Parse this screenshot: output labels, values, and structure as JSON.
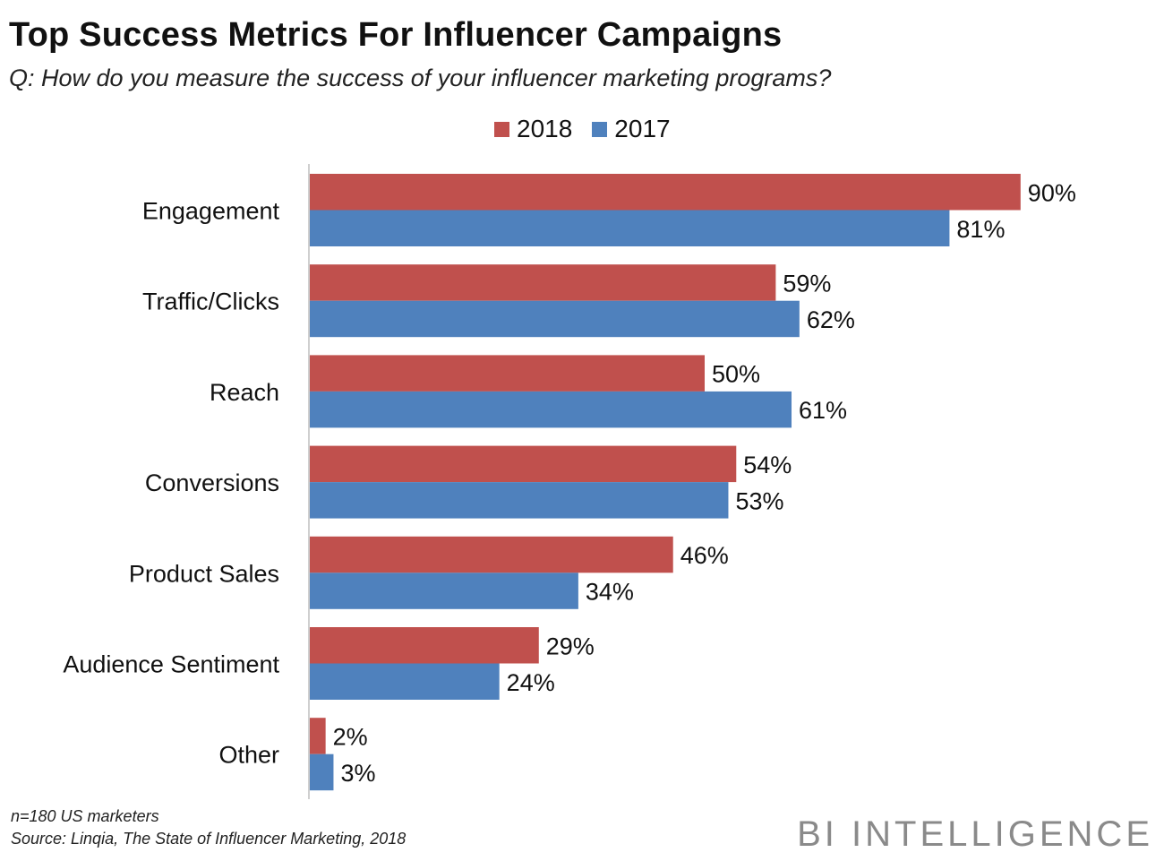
{
  "header": {
    "title": "Top Success Metrics For Influencer Campaigns",
    "subtitle": "Q: How do you measure the success of your influencer marketing programs?"
  },
  "footer": {
    "note": "n=180 US marketers",
    "source": "Source: Linqia, The State of Influencer Marketing, 2018",
    "brand": "BI INTELLIGENCE"
  },
  "chart_data": {
    "type": "bar",
    "orientation": "horizontal",
    "title": "Top Success Metrics For Influencer Campaigns",
    "subtitle": "Q: How do you measure the success of your influencer marketing programs?",
    "categories": [
      "Engagement",
      "Traffic/Clicks",
      "Reach",
      "Conversions",
      "Product Sales",
      "Audience Sentiment",
      "Other"
    ],
    "series": [
      {
        "name": "2018",
        "color": "#c0504d",
        "values": [
          90,
          59,
          50,
          54,
          46,
          29,
          2
        ],
        "labels": [
          "90%",
          "59%",
          "50%",
          "54%",
          "46%",
          "29%",
          "2%"
        ]
      },
      {
        "name": "2017",
        "color": "#4f81bd",
        "values": [
          81,
          62,
          61,
          53,
          34,
          24,
          3
        ],
        "labels": [
          "81%",
          "62%",
          "61%",
          "53%",
          "34%",
          "24%",
          "3%"
        ]
      }
    ],
    "xlim": [
      0,
      100
    ],
    "legend": "top",
    "grid": false,
    "xlabel": "",
    "ylabel": ""
  }
}
